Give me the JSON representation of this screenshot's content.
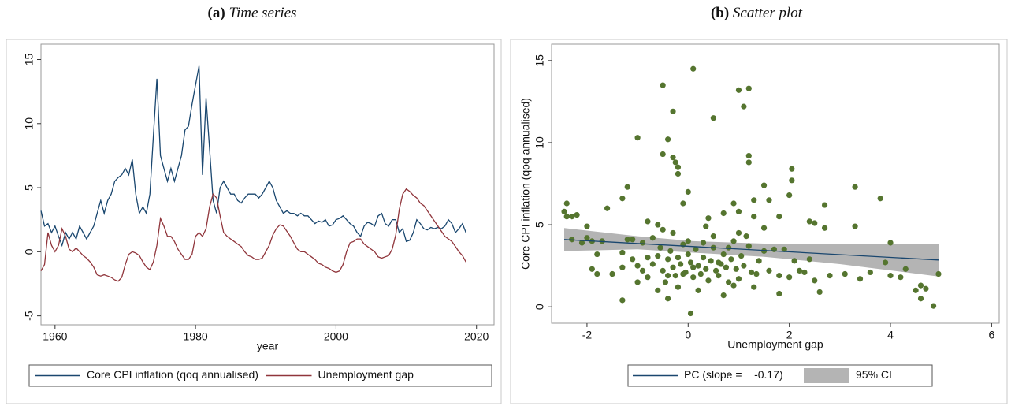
{
  "chart_data": [
    {
      "type": "line",
      "caption_tag": "(a)",
      "title": "Time series",
      "x_label": "year",
      "xlim": [
        1958,
        2022.5
      ],
      "xticks": [
        1960,
        1980,
        2000,
        2020
      ],
      "ylim": [
        -5.7,
        16.2
      ],
      "yticks": [
        -5,
        0,
        5,
        10,
        15
      ],
      "grid": false,
      "x": [
        1958,
        1958.5,
        1959,
        1959.5,
        1960,
        1960.5,
        1961,
        1961.5,
        1962,
        1962.5,
        1963,
        1963.5,
        1964,
        1964.5,
        1965,
        1965.5,
        1966,
        1966.5,
        1967,
        1967.5,
        1968,
        1968.5,
        1969,
        1969.5,
        1970,
        1970.5,
        1971,
        1971.5,
        1972,
        1972.5,
        1973,
        1973.5,
        1974,
        1974.5,
        1975,
        1975.5,
        1976,
        1976.5,
        1977,
        1977.5,
        1978,
        1978.5,
        1979,
        1979.5,
        1980,
        1980.5,
        1981,
        1981.5,
        1982,
        1982.5,
        1983,
        1983.5,
        1984,
        1984.5,
        1985,
        1985.5,
        1986,
        1986.5,
        1987,
        1987.5,
        1988,
        1988.5,
        1989,
        1989.5,
        1990,
        1990.5,
        1991,
        1991.5,
        1992,
        1992.5,
        1993,
        1993.5,
        1994,
        1994.5,
        1995,
        1995.5,
        1996,
        1996.5,
        1997,
        1997.5,
        1998,
        1998.5,
        1999,
        1999.5,
        2000,
        2000.5,
        2001,
        2001.5,
        2002,
        2002.5,
        2003,
        2003.5,
        2004,
        2004.5,
        2005,
        2005.5,
        2006,
        2006.5,
        2007,
        2007.5,
        2008,
        2008.5,
        2009,
        2009.5,
        2010,
        2010.5,
        2011,
        2011.5,
        2012,
        2012.5,
        2013,
        2013.5,
        2014,
        2014.5,
        2015,
        2015.5,
        2016,
        2016.5,
        2017,
        2017.5,
        2018,
        2018.5
      ],
      "series": [
        {
          "name": "Core CPI inflation (qoq annualised)",
          "color": "#1a476f",
          "values": [
            3.2,
            2.0,
            2.2,
            1.5,
            2.0,
            1.2,
            0.5,
            1.5,
            1.0,
            1.5,
            1.0,
            2.0,
            1.5,
            1.0,
            1.5,
            2.0,
            3.0,
            4.0,
            3.0,
            4.0,
            4.5,
            5.5,
            5.8,
            6.0,
            6.5,
            6.0,
            7.2,
            4.5,
            3.0,
            3.5,
            3.0,
            4.5,
            9.0,
            13.5,
            7.5,
            6.5,
            5.5,
            6.5,
            5.5,
            6.5,
            7.5,
            9.5,
            9.8,
            11.5,
            13.0,
            14.5,
            6.0,
            12.0,
            8.0,
            4.0,
            3.0,
            5.0,
            5.5,
            5.0,
            4.5,
            4.5,
            4.0,
            3.8,
            4.2,
            4.5,
            4.5,
            4.5,
            4.2,
            4.5,
            5.0,
            5.5,
            5.0,
            4.0,
            3.5,
            3.0,
            3.2,
            3.0,
            3.0,
            2.8,
            3.0,
            2.8,
            2.8,
            2.5,
            2.2,
            2.4,
            2.3,
            2.5,
            2.0,
            2.1,
            2.5,
            2.6,
            2.8,
            2.5,
            2.2,
            2.0,
            1.5,
            1.2,
            2.0,
            2.3,
            2.2,
            2.0,
            2.8,
            3.0,
            2.2,
            2.0,
            2.5,
            2.5,
            1.5,
            1.8,
            0.8,
            0.9,
            1.5,
            2.5,
            2.2,
            1.8,
            1.7,
            1.9,
            1.8,
            1.9,
            1.8,
            2.0,
            2.5,
            2.2,
            1.5,
            1.8,
            2.2,
            1.5
          ]
        },
        {
          "name": "Unemployment gap",
          "color": "#90353b",
          "values": [
            -1.5,
            -1.0,
            1.5,
            0.5,
            0.0,
            0.5,
            1.8,
            1.2,
            0.2,
            0.0,
            0.3,
            0.0,
            -0.3,
            -0.5,
            -0.8,
            -1.2,
            -1.8,
            -1.9,
            -1.8,
            -1.9,
            -2.0,
            -2.2,
            -2.3,
            -2.0,
            -1.0,
            -0.2,
            0.0,
            -0.1,
            -0.3,
            -0.8,
            -1.2,
            -1.4,
            -0.8,
            0.5,
            2.6,
            2.0,
            1.2,
            1.2,
            0.8,
            0.2,
            -0.2,
            -0.6,
            -0.6,
            -0.2,
            1.2,
            1.5,
            1.2,
            1.8,
            3.5,
            4.5,
            4.2,
            2.8,
            1.5,
            1.2,
            1.0,
            0.8,
            0.6,
            0.4,
            0.0,
            -0.3,
            -0.4,
            -0.6,
            -0.6,
            -0.5,
            0.0,
            0.5,
            1.3,
            1.8,
            2.1,
            2.0,
            1.6,
            1.2,
            0.7,
            0.2,
            0.0,
            0.0,
            -0.2,
            -0.4,
            -0.6,
            -0.9,
            -1.0,
            -1.2,
            -1.3,
            -1.5,
            -1.6,
            -1.5,
            -1.0,
            0.0,
            0.7,
            0.8,
            1.0,
            1.0,
            0.6,
            0.4,
            0.2,
            0.0,
            -0.4,
            -0.5,
            -0.4,
            -0.3,
            0.2,
            1.3,
            3.3,
            4.5,
            4.9,
            4.7,
            4.4,
            4.2,
            3.8,
            3.6,
            3.2,
            2.8,
            2.4,
            2.0,
            1.6,
            1.2,
            1.0,
            0.8,
            0.4,
            0.0,
            -0.3,
            -0.8
          ]
        }
      ]
    },
    {
      "type": "scatter",
      "caption_tag": "(b)",
      "title": "Scatter plot",
      "x_label": "Unemployment gap",
      "y_label": "Core CPI inflation (qoq annualised)",
      "xlim": [
        -2.7,
        6.15
      ],
      "xticks": [
        -2,
        0,
        2,
        4,
        6
      ],
      "ylim": [
        -1,
        16
      ],
      "yticks": [
        0,
        5,
        10,
        15
      ],
      "grid": false,
      "points": {
        "color": "#55752f",
        "x": [
          -0.5,
          1.0,
          1.2,
          1.1,
          -0.3,
          0.1,
          0.5,
          -1.0,
          -0.4,
          -0.5,
          -0.3,
          -0.25,
          -0.2,
          -0.2,
          1.2,
          1.2,
          2.05,
          2.05,
          1.5,
          3.3,
          3.8,
          2.7,
          1.6,
          -1.2,
          -1.3,
          -1.6,
          -2.4,
          -2.45,
          -2.4,
          -2.3,
          -2.0,
          -2.3,
          -1.9,
          -2.1,
          0.0,
          -0.1,
          0.05,
          4.85,
          4.6,
          -1.3,
          -0.4,
          0.7,
          1.8,
          2.6,
          4.0,
          4.0,
          3.9,
          4.3,
          4.5,
          4.6,
          4.7,
          4.95,
          3.3,
          3.1,
          3.4,
          2.8,
          2.4,
          2.5,
          2.7,
          2.3,
          0.9,
          0.7,
          1.0,
          1.3,
          1.3,
          1.8,
          2.0,
          0.4,
          0.35,
          -0.6,
          -0.5,
          -0.7,
          -0.8,
          -1.1,
          -1.2,
          -1.3,
          -1.8,
          -1.9,
          -1.8,
          -1.5,
          -1.3,
          -1.1,
          -1.0,
          -0.9,
          -0.8,
          -0.7,
          -0.6,
          -0.55,
          -0.5,
          -0.45,
          -0.4,
          -0.35,
          -0.3,
          -0.25,
          -0.2,
          -0.15,
          -0.1,
          -0.05,
          0.0,
          0.05,
          0.1,
          0.15,
          0.2,
          0.25,
          0.3,
          0.35,
          0.4,
          0.45,
          0.5,
          0.55,
          0.6,
          0.65,
          0.7,
          0.75,
          0.8,
          0.85,
          0.9,
          0.95,
          1.0,
          1.05,
          1.1,
          1.15,
          1.2,
          1.25,
          1.3,
          1.4,
          1.5,
          1.6,
          1.7,
          1.8,
          1.9,
          2.0,
          2.1,
          2.2,
          2.4,
          2.5,
          -0.2,
          0.2,
          -0.6,
          -1.0,
          -2.2,
          -1.7,
          -0.9,
          0.0,
          0.5,
          1.0,
          1.5,
          -0.3,
          0.3,
          0.8,
          -0.8,
          -0.1,
          0.6,
          1.35,
          -0.4,
          0.1,
          0.9,
          3.6,
          4.2,
          -2.0
        ],
        "y": [
          13.5,
          13.2,
          13.3,
          12.2,
          11.9,
          14.5,
          11.5,
          10.3,
          10.2,
          9.3,
          9.1,
          8.8,
          8.5,
          8.1,
          9.2,
          8.8,
          8.4,
          7.7,
          7.4,
          7.3,
          6.6,
          6.2,
          6.5,
          7.3,
          6.6,
          6.0,
          6.3,
          5.8,
          5.5,
          5.5,
          4.9,
          4.1,
          4.0,
          3.9,
          7.0,
          6.3,
          -0.4,
          0.05,
          0.5,
          0.4,
          0.5,
          0.7,
          0.8,
          0.9,
          3.9,
          1.9,
          2.7,
          2.3,
          1.0,
          1.3,
          1.1,
          2.0,
          4.9,
          2.0,
          1.7,
          1.9,
          5.2,
          5.1,
          4.8,
          2.1,
          6.3,
          5.7,
          5.8,
          6.5,
          5.5,
          5.5,
          6.8,
          5.4,
          4.9,
          5.0,
          4.7,
          4.2,
          5.2,
          4.1,
          4.1,
          3.3,
          3.2,
          2.3,
          2.0,
          2.0,
          2.4,
          2.9,
          2.5,
          2.2,
          1.8,
          2.6,
          3.1,
          3.6,
          2.2,
          1.5,
          2.9,
          3.4,
          2.4,
          1.9,
          3.0,
          2.6,
          3.8,
          2.1,
          3.2,
          2.7,
          1.8,
          3.5,
          2.5,
          2.0,
          3.0,
          2.3,
          1.6,
          2.8,
          3.6,
          2.2,
          1.9,
          2.6,
          3.2,
          2.4,
          1.5,
          2.9,
          4.0,
          2.3,
          1.7,
          3.1,
          2.5,
          4.3,
          3.7,
          2.1,
          1.2,
          2.8,
          3.4,
          2.2,
          3.5,
          1.9,
          3.5,
          1.8,
          2.8,
          2.2,
          2.9,
          1.6,
          1.2,
          1.0,
          1.0,
          1.5,
          5.6,
          4.0,
          3.9,
          4.0,
          4.3,
          4.5,
          4.8,
          4.5,
          3.9,
          3.6,
          3.0,
          2.0,
          2.7,
          2.0,
          1.9,
          2.4,
          1.3,
          2.1,
          1.8,
          4.2
        ]
      },
      "fit": {
        "name": "PC (slope =    -0.17)",
        "color": "#1a476f",
        "x": [
          -2.45,
          4.95
        ],
        "y": [
          4.1,
          2.85
        ]
      },
      "ci": {
        "name": "95% CI",
        "color": "#b4b4b4",
        "x": [
          -2.45,
          -1,
          0.1,
          1.5,
          3,
          4.95
        ],
        "lower": [
          3.4,
          3.5,
          3.3,
          3.05,
          2.6,
          1.85
        ],
        "upper": [
          4.8,
          4.3,
          4.0,
          3.85,
          3.8,
          3.85
        ]
      }
    }
  ]
}
